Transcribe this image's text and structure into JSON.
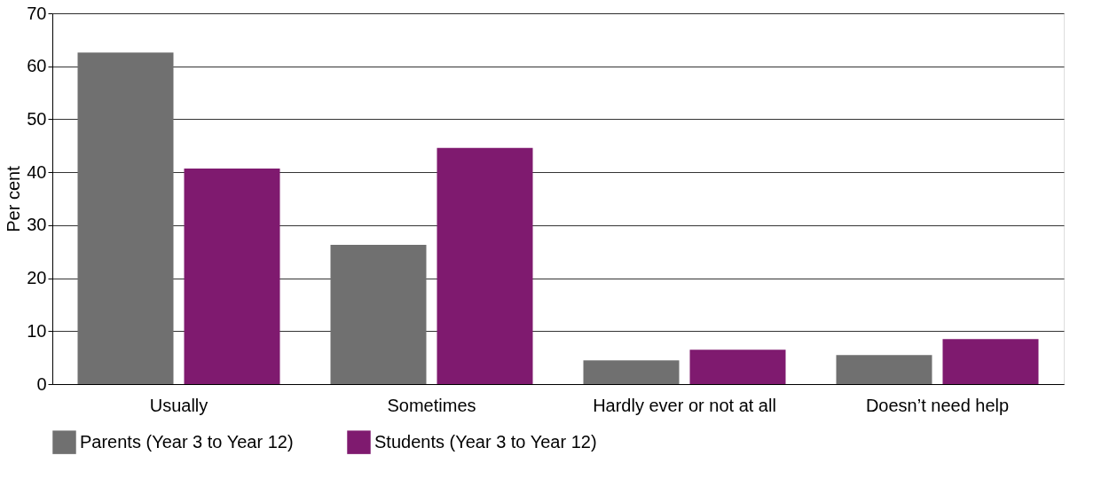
{
  "chart_data": {
    "type": "bar",
    "ylabel": "Per cent",
    "categories": [
      "Usually",
      "Sometimes",
      "Hardly ever or not at all",
      "Doesn’t need help"
    ],
    "series": [
      {
        "name": "Parents (Year 3 to Year 12)",
        "color": "#707070",
        "values": [
          62.6,
          26.3,
          4.5,
          5.5
        ]
      },
      {
        "name": "Students (Year 3 to Year 12)",
        "color": "#7f1a6f",
        "values": [
          40.7,
          44.6,
          6.5,
          8.5
        ]
      }
    ],
    "ylim": [
      0,
      70
    ],
    "yticks": [
      0,
      10,
      20,
      30,
      40,
      50,
      60,
      70
    ],
    "grid": "y",
    "legend": "bottom"
  }
}
